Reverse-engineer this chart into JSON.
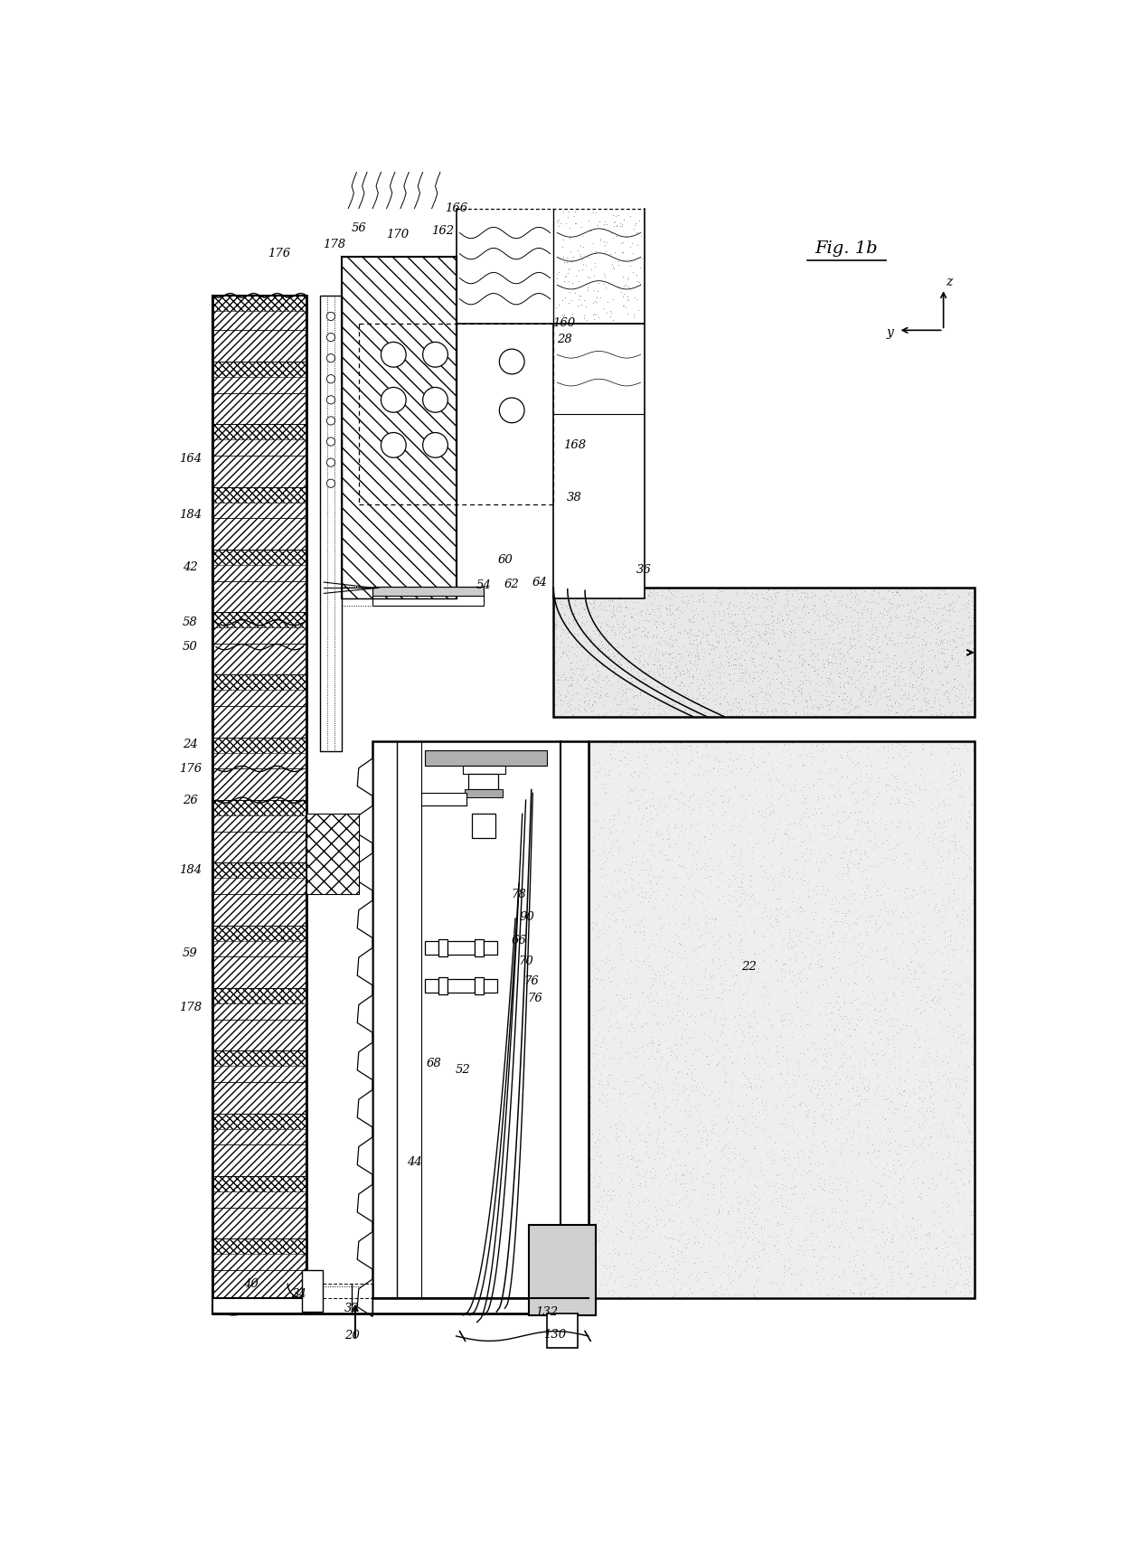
{
  "bg_color": "#ffffff",
  "fig_title": "Fig. 1b",
  "labels": [
    [
      "56",
      310,
      58
    ],
    [
      "166",
      450,
      30
    ],
    [
      "162",
      430,
      62
    ],
    [
      "170",
      365,
      68
    ],
    [
      "178",
      275,
      82
    ],
    [
      "176",
      195,
      95
    ],
    [
      "164",
      68,
      390
    ],
    [
      "184",
      68,
      470
    ],
    [
      "42",
      68,
      545
    ],
    [
      "58",
      68,
      625
    ],
    [
      "50",
      68,
      660
    ],
    [
      "24",
      68,
      800
    ],
    [
      "176",
      68,
      835
    ],
    [
      "26",
      68,
      880
    ],
    [
      "184",
      68,
      980
    ],
    [
      "59",
      68,
      1100
    ],
    [
      "178",
      68,
      1178
    ],
    [
      "40",
      155,
      1575
    ],
    [
      "34",
      225,
      1590
    ],
    [
      "32",
      300,
      1610
    ],
    [
      "20",
      300,
      1650
    ],
    [
      "160",
      605,
      195
    ],
    [
      "28",
      605,
      218
    ],
    [
      "38",
      620,
      445
    ],
    [
      "168",
      620,
      370
    ],
    [
      "60",
      520,
      535
    ],
    [
      "54",
      490,
      572
    ],
    [
      "62",
      530,
      570
    ],
    [
      "64",
      570,
      568
    ],
    [
      "36",
      720,
      550
    ],
    [
      "78",
      540,
      1015
    ],
    [
      "90",
      552,
      1048
    ],
    [
      "66",
      540,
      1082
    ],
    [
      "70",
      550,
      1112
    ],
    [
      "76",
      558,
      1140
    ],
    [
      "76",
      563,
      1165
    ],
    [
      "68",
      418,
      1258
    ],
    [
      "52",
      460,
      1268
    ],
    [
      "44",
      390,
      1400
    ],
    [
      "130",
      592,
      1648
    ],
    [
      "132",
      580,
      1615
    ],
    [
      "22",
      870,
      1120
    ]
  ]
}
